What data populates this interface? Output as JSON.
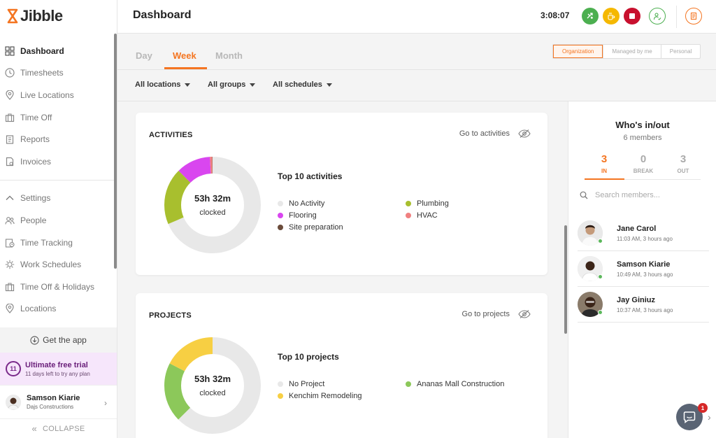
{
  "app": {
    "name": "Jibble"
  },
  "sidebar": {
    "items": [
      {
        "label": "Dashboard",
        "icon": "dashboard-icon",
        "active": true
      },
      {
        "label": "Timesheets",
        "icon": "clock-icon"
      },
      {
        "label": "Live Locations",
        "icon": "location-pin-icon"
      },
      {
        "label": "Time Off",
        "icon": "suitcase-icon"
      },
      {
        "label": "Reports",
        "icon": "clipboard-icon"
      },
      {
        "label": "Invoices",
        "icon": "invoice-icon"
      }
    ],
    "settings_items": [
      {
        "label": "Settings",
        "icon": "chevron-up-icon"
      },
      {
        "label": "People",
        "icon": "people-icon"
      },
      {
        "label": "Time Tracking",
        "icon": "time-tracking-icon"
      },
      {
        "label": "Work Schedules",
        "icon": "schedule-icon"
      },
      {
        "label": "Time Off & Holidays",
        "icon": "suitcase-icon"
      },
      {
        "label": "Locations",
        "icon": "location-pin-icon"
      }
    ],
    "get_app": "Get the app",
    "trial": {
      "badge": "11",
      "title": "Ultimate free trial",
      "subtitle": "11 days left to try any plan"
    },
    "user": {
      "name": "Samson Kiarie",
      "company": "Dajs Constructions"
    },
    "collapse": "COLLAPSE"
  },
  "header": {
    "title": "Dashboard",
    "clock": "3:08:07",
    "buttons": [
      {
        "name": "switch-activity-button",
        "icon": "swap-icon",
        "color": "#4caf50"
      },
      {
        "name": "break-button",
        "icon": "coffee-icon",
        "color": "#f5b800"
      },
      {
        "name": "stop-button",
        "icon": "stop-icon",
        "color": "#c8102e"
      },
      {
        "name": "profile-button",
        "icon": "person-check-icon",
        "color": "#4caf50"
      },
      {
        "name": "notes-button",
        "icon": "notes-icon",
        "color": "#f47521"
      }
    ]
  },
  "tabs": {
    "day": "Day",
    "week": "Week",
    "month": "Month",
    "active": "Week"
  },
  "scope": {
    "organization": "Organization",
    "managed": "Managed by me",
    "personal": "Personal",
    "active": "Organization"
  },
  "filters": {
    "locations": "All locations",
    "groups": "All groups",
    "schedules": "All schedules"
  },
  "activities": {
    "title": "ACTIVITIES",
    "link": "Go to activities",
    "total": "53h 32m",
    "total_sub": "clocked",
    "legend_title": "Top 10 activities",
    "legend": [
      {
        "label": "No Activity",
        "color": "#e8e8e8"
      },
      {
        "label": "Plumbing",
        "color": "#a8bf2e"
      },
      {
        "label": "Flooring",
        "color": "#d946ef"
      },
      {
        "label": "HVAC",
        "color": "#f08080"
      },
      {
        "label": "Site preparation",
        "color": "#6b4c3b"
      }
    ]
  },
  "projects": {
    "title": "PROJECTS",
    "link": "Go to projects",
    "total": "53h 32m",
    "total_sub": "clocked",
    "legend_title": "Top 10 projects",
    "legend": [
      {
        "label": "No Project",
        "color": "#e8e8e8"
      },
      {
        "label": "Ananas Mall Construction",
        "color": "#8cc85a"
      },
      {
        "label": "Kenchim Remodeling",
        "color": "#f7cf43"
      }
    ]
  },
  "chart_data": [
    {
      "type": "pie",
      "title": "ACTIVITIES",
      "categories": [
        "No Activity",
        "Plumbing",
        "Flooring",
        "HVAC",
        "Site preparation"
      ],
      "values": [
        0.685,
        0.19,
        0.115,
        0.008,
        0.002
      ],
      "colors": [
        "#e8e8e8",
        "#a8bf2e",
        "#d946ef",
        "#f08080",
        "#6b4c3b"
      ]
    },
    {
      "type": "pie",
      "title": "PROJECTS",
      "categories": [
        "No Project",
        "Ananas Mall Construction",
        "Kenchim Remodeling"
      ],
      "values": [
        0.625,
        0.2,
        0.175
      ],
      "colors": [
        "#e8e8e8",
        "#8cc85a",
        "#f7cf43"
      ]
    }
  ],
  "who": {
    "title": "Who's in/out",
    "subtitle": "6 members",
    "in_count": "3",
    "in_label": "IN",
    "break_count": "0",
    "break_label": "BREAK",
    "out_count": "3",
    "out_label": "OUT",
    "search_placeholder": "Search members...",
    "members": [
      {
        "name": "Jane Carol",
        "time": "11:03 AM, 3 hours ago"
      },
      {
        "name": "Samson Kiarie",
        "time": "10:49 AM, 3 hours ago"
      },
      {
        "name": "Jay Giniuz",
        "time": "10:37 AM, 3 hours ago"
      }
    ]
  },
  "chat": {
    "badge": "1"
  }
}
